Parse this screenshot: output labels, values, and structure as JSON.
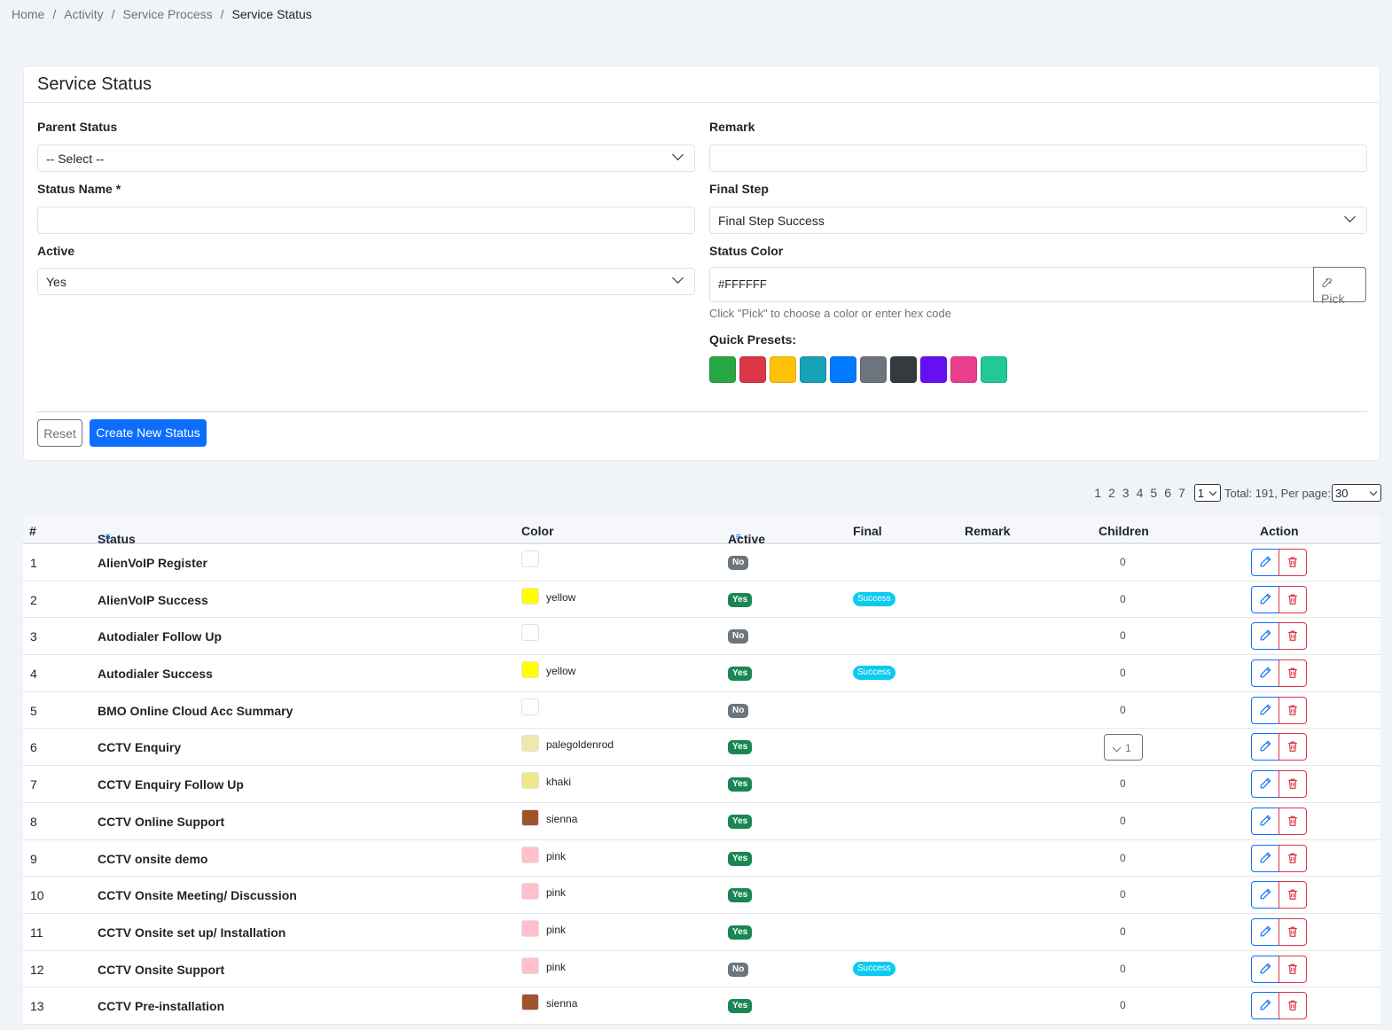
{
  "breadcrumb": [
    "Home",
    "Activity",
    "Service Process",
    "Service Status"
  ],
  "form": {
    "title": "Service Status",
    "parent_status": {
      "label": "Parent Status",
      "value": "-- Select --"
    },
    "status_name": {
      "label": "Status Name *",
      "value": ""
    },
    "active": {
      "label": "Active",
      "value": "Yes"
    },
    "remark": {
      "label": "Remark",
      "value": ""
    },
    "final_step": {
      "label": "Final Step",
      "value": "Final Step Success"
    },
    "status_color": {
      "label": "Status Color",
      "value": "#FFFFFF",
      "pick_label": "Pick",
      "help": "Click \"Pick\" to choose a color or enter hex code"
    },
    "presets_label": "Quick Presets:",
    "presets": [
      "#28a745",
      "#dc3545",
      "#ffc107",
      "#17a2b8",
      "#007bff",
      "#6c757d",
      "#343a40",
      "#6610f2",
      "#e83e8c",
      "#20c997"
    ],
    "reset_label": "Reset",
    "create_label": "Create New Status"
  },
  "pagination": {
    "pages": [
      "1",
      "2",
      "3",
      "4",
      "5",
      "6",
      "7"
    ],
    "current": "1",
    "total_text": "Total: 191, Per page:",
    "per_page": "30"
  },
  "table": {
    "headers": {
      "num": "#",
      "status": "Status",
      "color": "Color",
      "active": "Active",
      "final": "Final",
      "remark": "Remark",
      "children": "Children",
      "action": "Action"
    },
    "rows": [
      {
        "num": "1",
        "status": "AlienVoIP Register",
        "color": "",
        "hex": "#ffffff",
        "active": "No",
        "final": "",
        "children": "0"
      },
      {
        "num": "2",
        "status": "AlienVoIP Success",
        "color": "yellow",
        "hex": "#ffff00",
        "active": "Yes",
        "final": "Success",
        "children": "0"
      },
      {
        "num": "3",
        "status": "Autodialer Follow Up",
        "color": "",
        "hex": "#ffffff",
        "active": "No",
        "final": "",
        "children": "0"
      },
      {
        "num": "4",
        "status": "Autodialer Success",
        "color": "yellow",
        "hex": "#ffff00",
        "active": "Yes",
        "final": "Success",
        "children": "0"
      },
      {
        "num": "5",
        "status": "BMO Online Cloud Acc Summary",
        "color": "",
        "hex": "#ffffff",
        "active": "No",
        "final": "",
        "children": "0"
      },
      {
        "num": "6",
        "status": "CCTV Enquiry",
        "color": "palegoldenrod",
        "hex": "#eee8aa",
        "active": "Yes",
        "final": "",
        "children": "1"
      },
      {
        "num": "7",
        "status": "CCTV Enquiry Follow Up",
        "color": "khaki",
        "hex": "#f0e68c",
        "active": "Yes",
        "final": "",
        "children": "0"
      },
      {
        "num": "8",
        "status": "CCTV Online Support",
        "color": "sienna",
        "hex": "#a0522d",
        "active": "Yes",
        "final": "",
        "children": "0"
      },
      {
        "num": "9",
        "status": "CCTV onsite demo",
        "color": "pink",
        "hex": "#ffc0cb",
        "active": "Yes",
        "final": "",
        "children": "0"
      },
      {
        "num": "10",
        "status": "CCTV Onsite Meeting/ Discussion",
        "color": "pink",
        "hex": "#ffc0cb",
        "active": "Yes",
        "final": "",
        "children": "0"
      },
      {
        "num": "11",
        "status": "CCTV Onsite set up/ Installation",
        "color": "pink",
        "hex": "#ffc0cb",
        "active": "Yes",
        "final": "",
        "children": "0"
      },
      {
        "num": "12",
        "status": "CCTV Onsite Support",
        "color": "pink",
        "hex": "#ffc0cb",
        "active": "No",
        "final": "Success",
        "children": "0"
      },
      {
        "num": "13",
        "status": "CCTV Pre-installation",
        "color": "sienna",
        "hex": "#a0522d",
        "active": "Yes",
        "final": "",
        "children": "0"
      }
    ]
  }
}
